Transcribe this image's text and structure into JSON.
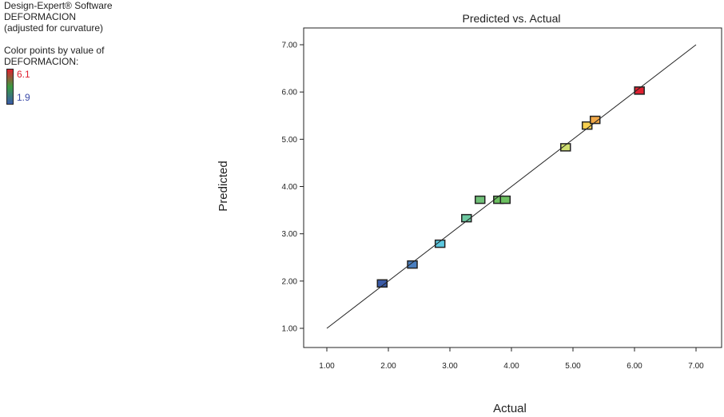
{
  "info": {
    "software": "Design-Expert® Software",
    "response": "DEFORMACION",
    "note": "(adjusted for curvature)",
    "color_label_1": "Color points by value of",
    "color_label_2": "DEFORMACION:",
    "color_high": "6.1",
    "color_low": "1.9"
  },
  "chart_data": {
    "type": "scatter",
    "title": "Predicted vs. Actual",
    "xlabel": "Actual",
    "ylabel": "Predicted",
    "xlim": [
      1,
      7
    ],
    "ylim": [
      1,
      7
    ],
    "xticks": [
      "1.00",
      "2.00",
      "3.00",
      "4.00",
      "5.00",
      "6.00",
      "7.00"
    ],
    "yticks": [
      "1.00",
      "2.00",
      "3.00",
      "4.00",
      "5.00",
      "6.00",
      "7.00"
    ],
    "reference_line": "y = x",
    "grid": false,
    "points": [
      {
        "x": 1.9,
        "y": 1.95,
        "color": "#3a5ba8"
      },
      {
        "x": 2.39,
        "y": 2.35,
        "color": "#4a7fc0"
      },
      {
        "x": 2.84,
        "y": 2.79,
        "color": "#5cc8e0"
      },
      {
        "x": 3.27,
        "y": 3.33,
        "color": "#6cc8a0"
      },
      {
        "x": 3.49,
        "y": 3.72,
        "color": "#70c078"
      },
      {
        "x": 3.79,
        "y": 3.72,
        "color": "#6cc060"
      },
      {
        "x": 3.9,
        "y": 3.72,
        "color": "#6cc060"
      },
      {
        "x": 4.88,
        "y": 4.83,
        "color": "#d0e070"
      },
      {
        "x": 5.23,
        "y": 5.29,
        "color": "#f8d050"
      },
      {
        "x": 5.36,
        "y": 5.41,
        "color": "#f0a848"
      },
      {
        "x": 6.08,
        "y": 6.03,
        "color": "#e02030"
      }
    ]
  }
}
